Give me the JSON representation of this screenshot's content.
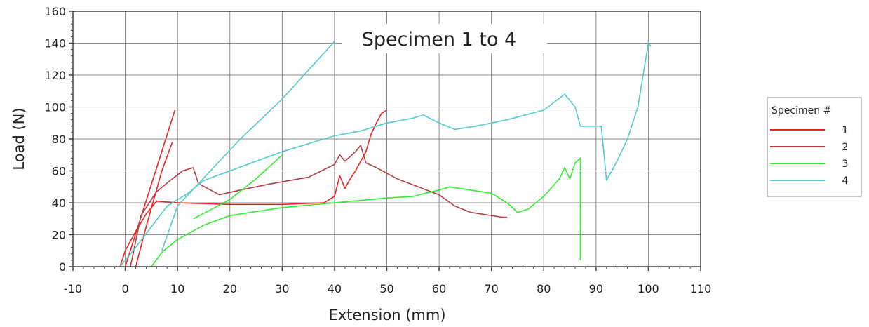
{
  "chart_data": {
    "type": "line",
    "title": "Specimen 1 to 4",
    "xlabel": "Extension (mm)",
    "ylabel": "Load (N)",
    "xlim": [
      -10,
      110
    ],
    "ylim": [
      0,
      160
    ],
    "xticks": [
      -10,
      0,
      10,
      20,
      30,
      40,
      50,
      60,
      70,
      80,
      90,
      100,
      110
    ],
    "yticks": [
      0,
      20,
      40,
      60,
      80,
      100,
      120,
      140,
      160
    ],
    "grid": true,
    "legend": {
      "title": "Specimen #",
      "placement": "right"
    },
    "series": [
      {
        "name": "1",
        "color": "#ee2222",
        "segments": [
          [
            [
              -1,
              0
            ],
            [
              0,
              10
            ],
            [
              2,
              22
            ],
            [
              4,
              33
            ],
            [
              6,
              41
            ],
            [
              10,
              40
            ],
            [
              20,
              39
            ],
            [
              30,
              39
            ],
            [
              38,
              40
            ],
            [
              40,
              44
            ],
            [
              41,
              57
            ],
            [
              42,
              49
            ],
            [
              43,
              55
            ],
            [
              44,
              60
            ],
            [
              46,
              72
            ],
            [
              47,
              83
            ],
            [
              48,
              90
            ],
            [
              49,
              96
            ],
            [
              50,
              98
            ]
          ],
          [
            [
              0,
              0
            ],
            [
              9.5,
              98
            ]
          ],
          [
            [
              2,
              0
            ],
            [
              4,
              25
            ],
            [
              7,
              60
            ],
            [
              9,
              78
            ]
          ]
        ]
      },
      {
        "name": "2",
        "color": "#b44048",
        "segments": [
          [
            [
              1,
              0
            ],
            [
              3,
              32
            ],
            [
              6,
              47
            ],
            [
              9,
              55
            ],
            [
              11,
              60
            ],
            [
              13,
              62
            ],
            [
              14,
              52
            ],
            [
              18,
              45
            ],
            [
              22,
              48
            ],
            [
              28,
              52
            ],
            [
              35,
              56
            ],
            [
              40,
              64
            ],
            [
              41,
              70
            ],
            [
              42,
              66
            ],
            [
              44,
              72
            ],
            [
              45,
              76
            ],
            [
              46,
              65
            ],
            [
              48,
              62
            ],
            [
              52,
              55
            ],
            [
              56,
              50
            ],
            [
              60,
              45
            ],
            [
              63,
              38
            ],
            [
              66,
              34
            ],
            [
              70,
              32
            ],
            [
              72,
              31
            ],
            [
              73,
              31
            ]
          ]
        ]
      },
      {
        "name": "3",
        "color": "#33ee33",
        "segments": [
          [
            [
              5,
              0
            ],
            [
              7,
              9
            ],
            [
              10,
              17
            ],
            [
              15,
              26
            ],
            [
              20,
              32
            ],
            [
              30,
              37
            ],
            [
              40,
              40
            ],
            [
              50,
              43
            ],
            [
              55,
              44
            ],
            [
              60,
              48
            ],
            [
              62,
              50
            ],
            [
              66,
              48
            ],
            [
              70,
              46
            ],
            [
              73,
              40
            ],
            [
              75,
              34
            ],
            [
              77,
              36
            ],
            [
              80,
              44
            ],
            [
              83,
              55
            ],
            [
              84,
              62
            ],
            [
              85,
              55
            ],
            [
              86,
              65
            ],
            [
              87,
              68
            ],
            [
              87,
              4
            ]
          ],
          [
            [
              13,
              30
            ],
            [
              20,
              42
            ],
            [
              25,
              55
            ],
            [
              30,
              70
            ]
          ]
        ]
      },
      {
        "name": "4",
        "color": "#55cccc",
        "segments": [
          [
            [
              -1,
              0
            ],
            [
              2,
              12
            ],
            [
              5,
              25
            ],
            [
              8,
              38
            ],
            [
              12,
              46
            ],
            [
              15,
              54
            ],
            [
              20,
              60
            ],
            [
              30,
              72
            ],
            [
              40,
              82
            ],
            [
              45,
              85
            ],
            [
              50,
              90
            ],
            [
              55,
              93
            ],
            [
              57,
              95
            ],
            [
              60,
              90
            ],
            [
              63,
              86
            ],
            [
              67,
              88
            ],
            [
              73,
              92
            ],
            [
              80,
              98
            ],
            [
              84,
              108
            ],
            [
              86,
              100
            ],
            [
              87,
              88
            ],
            [
              91,
              88
            ],
            [
              92,
              54
            ],
            [
              94,
              66
            ],
            [
              96,
              80
            ],
            [
              98,
              100
            ],
            [
              99,
              120
            ],
            [
              100,
              140
            ],
            [
              100.5,
              138
            ]
          ],
          [
            [
              7,
              10
            ],
            [
              10,
              38
            ],
            [
              14,
              52
            ],
            [
              22,
              80
            ],
            [
              30,
              105
            ],
            [
              40,
              141
            ]
          ]
        ]
      }
    ]
  }
}
